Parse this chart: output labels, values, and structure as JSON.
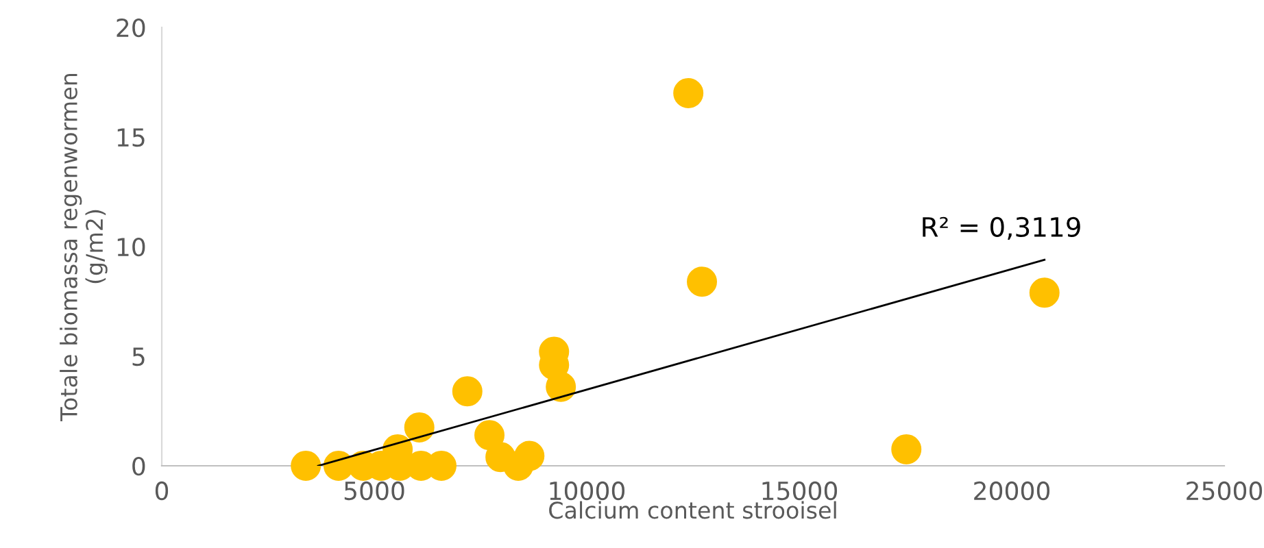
{
  "chart_data": {
    "type": "scatter",
    "xlabel": "Calcium content strooisel",
    "ylabel": "Totale biomassa regenwormen\n(g/m2)",
    "xlim": [
      0,
      25000
    ],
    "ylim": [
      0,
      20
    ],
    "xticks": [
      0,
      5000,
      10000,
      15000,
      20000,
      25000
    ],
    "yticks": [
      0,
      5,
      10,
      15,
      20
    ],
    "grid": false,
    "legend": false,
    "series": [
      {
        "marker": "circle",
        "color": "#ffc000",
        "x": [
          3390,
          4160,
          4740,
          5160,
          5550,
          5600,
          6060,
          6100,
          6580,
          7190,
          7710,
          7970,
          8390,
          8650,
          9230,
          9230,
          9390,
          12390,
          12710,
          17520,
          20770
        ],
        "values": [
          0,
          0,
          0,
          0,
          0.75,
          0,
          1.75,
          0,
          0,
          3.4,
          1.4,
          0.4,
          0,
          0.45,
          5.2,
          4.6,
          3.6,
          17.0,
          8.4,
          0.75,
          7.9
        ]
      },
      {
        "type": "line",
        "color": "#000000",
        "x": [
          3680,
          20770
        ],
        "values": [
          0,
          9.4
        ]
      }
    ],
    "annotations": [
      "R² = 0,3119"
    ]
  }
}
